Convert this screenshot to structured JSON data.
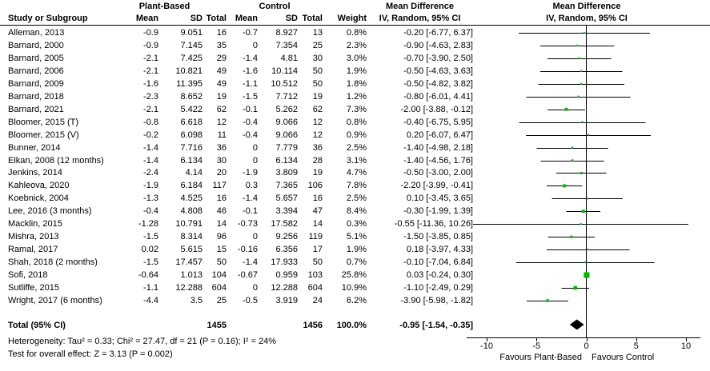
{
  "header": {
    "group1": "Plant-Based",
    "group2": "Control",
    "study": "Study or Subgroup",
    "mean": "Mean",
    "sd": "SD",
    "total": "Total",
    "weight": "Weight",
    "md_title": "Mean Difference",
    "md_sub": "IV, Random, 95% CI"
  },
  "chart_data": {
    "type": "forest",
    "effect_measure": "Mean Difference",
    "model": "IV, Random, 95% CI",
    "studies": [
      {
        "name": "Alleman, 2013",
        "pb_mean": "-0.9",
        "pb_sd": "9.051",
        "pb_n": "16",
        "c_mean": "-0.7",
        "c_sd": "8.927",
        "c_n": "13",
        "weight": "0.8%",
        "md": -0.2,
        "lo": -6.77,
        "hi": 6.37
      },
      {
        "name": "Barnard, 2000",
        "pb_mean": "-0.9",
        "pb_sd": "7.145",
        "pb_n": "35",
        "c_mean": "0",
        "c_sd": "7.354",
        "c_n": "25",
        "weight": "2.3%",
        "md": -0.9,
        "lo": -4.63,
        "hi": 2.83
      },
      {
        "name": "Barnard, 2005",
        "pb_mean": "-2.1",
        "pb_sd": "7.425",
        "pb_n": "29",
        "c_mean": "-1.4",
        "c_sd": "4.81",
        "c_n": "30",
        "weight": "3.0%",
        "md": -0.7,
        "lo": -3.9,
        "hi": 2.5
      },
      {
        "name": "Barnard, 2006",
        "pb_mean": "-2.1",
        "pb_sd": "10.821",
        "pb_n": "49",
        "c_mean": "-1.6",
        "c_sd": "10.114",
        "c_n": "50",
        "weight": "1.9%",
        "md": -0.5,
        "lo": -4.63,
        "hi": 3.63
      },
      {
        "name": "Barnard, 2009",
        "pb_mean": "-1.6",
        "pb_sd": "11.395",
        "pb_n": "49",
        "c_mean": "-1.1",
        "c_sd": "10.512",
        "c_n": "50",
        "weight": "1.8%",
        "md": -0.5,
        "lo": -4.82,
        "hi": 3.82
      },
      {
        "name": "Barnard, 2018",
        "pb_mean": "-2.3",
        "pb_sd": "8.652",
        "pb_n": "19",
        "c_mean": "-1.5",
        "c_sd": "7.712",
        "c_n": "19",
        "weight": "1.2%",
        "md": -0.8,
        "lo": -6.01,
        "hi": 4.41
      },
      {
        "name": "Barnard, 2021",
        "pb_mean": "-2.1",
        "pb_sd": "5.422",
        "pb_n": "62",
        "c_mean": "-0.1",
        "c_sd": "5.262",
        "c_n": "62",
        "weight": "7.3%",
        "md": -2.0,
        "lo": -3.88,
        "hi": -0.12
      },
      {
        "name": "Bloomer, 2015 (T)",
        "pb_mean": "-0.8",
        "pb_sd": "6.618",
        "pb_n": "12",
        "c_mean": "-0.4",
        "c_sd": "9.066",
        "c_n": "12",
        "weight": "0.8%",
        "md": -0.4,
        "lo": -6.75,
        "hi": 5.95
      },
      {
        "name": "Bloomer, 2015 (V)",
        "pb_mean": "-0.2",
        "pb_sd": "6.098",
        "pb_n": "11",
        "c_mean": "-0.4",
        "c_sd": "9.066",
        "c_n": "12",
        "weight": "0.9%",
        "md": 0.2,
        "lo": -6.07,
        "hi": 6.47
      },
      {
        "name": "Bunner, 2014",
        "pb_mean": "-1.4",
        "pb_sd": "7.716",
        "pb_n": "36",
        "c_mean": "0",
        "c_sd": "7.779",
        "c_n": "36",
        "weight": "2.5%",
        "md": -1.4,
        "lo": -4.98,
        "hi": 2.18
      },
      {
        "name": "Elkan, 2008 (12 months)",
        "pb_mean": "-1.4",
        "pb_sd": "6.134",
        "pb_n": "30",
        "c_mean": "0",
        "c_sd": "6.134",
        "c_n": "28",
        "weight": "3.1%",
        "md": -1.4,
        "lo": -4.56,
        "hi": 1.76
      },
      {
        "name": "Jenkins, 2014",
        "pb_mean": "-2.4",
        "pb_sd": "4.14",
        "pb_n": "20",
        "c_mean": "-1.9",
        "c_sd": "3.809",
        "c_n": "19",
        "weight": "4.7%",
        "md": -0.5,
        "lo": -3.0,
        "hi": 2.0
      },
      {
        "name": "Kahleova, 2020",
        "pb_mean": "-1.9",
        "pb_sd": "6.184",
        "pb_n": "117",
        "c_mean": "0.3",
        "c_sd": "7.365",
        "c_n": "106",
        "weight": "7.8%",
        "md": -2.2,
        "lo": -3.99,
        "hi": -0.41
      },
      {
        "name": "Koebnick, 2004",
        "pb_mean": "-1.3",
        "pb_sd": "4.525",
        "pb_n": "16",
        "c_mean": "-1.4",
        "c_sd": "5.657",
        "c_n": "16",
        "weight": "2.5%",
        "md": 0.1,
        "lo": -3.45,
        "hi": 3.65
      },
      {
        "name": "Lee, 2016 (3 months)",
        "pb_mean": "-0.4",
        "pb_sd": "4.808",
        "pb_n": "46",
        "c_mean": "-0.1",
        "c_sd": "3.394",
        "c_n": "47",
        "weight": "8.4%",
        "md": -0.3,
        "lo": -1.99,
        "hi": 1.39
      },
      {
        "name": "Macklin, 2015",
        "pb_mean": "-1.28",
        "pb_sd": "10.791",
        "pb_n": "14",
        "c_mean": "-0.73",
        "c_sd": "17.582",
        "c_n": "14",
        "weight": "0.3%",
        "md": -0.55,
        "lo": -11.36,
        "hi": 10.26
      },
      {
        "name": "Mishra, 2013",
        "pb_mean": "-1.5",
        "pb_sd": "8.314",
        "pb_n": "96",
        "c_mean": "0",
        "c_sd": "9.256",
        "c_n": "119",
        "weight": "5.1%",
        "md": -1.5,
        "lo": -3.85,
        "hi": 0.85
      },
      {
        "name": "Ramal, 2017",
        "pb_mean": "0.02",
        "pb_sd": "5.615",
        "pb_n": "15",
        "c_mean": "-0.16",
        "c_sd": "6.356",
        "c_n": "17",
        "weight": "1.9%",
        "md": 0.18,
        "lo": -3.97,
        "hi": 4.33
      },
      {
        "name": "Shah, 2018 (2 months)",
        "pb_mean": "-1.5",
        "pb_sd": "17.457",
        "pb_n": "50",
        "c_mean": "-1.4",
        "c_sd": "17.933",
        "c_n": "50",
        "weight": "0.7%",
        "md": -0.1,
        "lo": -7.04,
        "hi": 6.84
      },
      {
        "name": "Sofi, 2018",
        "pb_mean": "-0.64",
        "pb_sd": "1.013",
        "pb_n": "104",
        "c_mean": "-0.67",
        "c_sd": "0.959",
        "c_n": "103",
        "weight": "25.8%",
        "md": 0.03,
        "lo": -0.24,
        "hi": 0.3
      },
      {
        "name": "Sutliffe, 2015",
        "pb_mean": "-1.1",
        "pb_sd": "12.288",
        "pb_n": "604",
        "c_mean": "0",
        "c_sd": "12.288",
        "c_n": "604",
        "weight": "10.9%",
        "md": -1.1,
        "lo": -2.49,
        "hi": 0.29
      },
      {
        "name": "Wright, 2017 (6 months)",
        "pb_mean": "-4.4",
        "pb_sd": "3.5",
        "pb_n": "25",
        "c_mean": "-0.5",
        "c_sd": "3.919",
        "c_n": "24",
        "weight": "6.2%",
        "md": -3.9,
        "lo": -5.98,
        "hi": -1.82
      }
    ],
    "total": {
      "label": "Total (95% CI)",
      "pb_n": "1455",
      "c_n": "1456",
      "weight": "100.0%",
      "md": -0.95,
      "lo": -1.54,
      "hi": -0.35
    },
    "heterogeneity": "Heterogeneity: Tau² = 0.33; Chi² = 27.47, df = 21 (P = 0.16); I² = 24%",
    "overall_effect": "Test for overall effect: Z = 3.13 (P = 0.002)",
    "axis": {
      "ticks": [
        -10,
        -5,
        0,
        5,
        10
      ],
      "min": -12,
      "max": 11.5,
      "favours_left": "Favours Plant-Based",
      "favours_right": "Favours Control"
    },
    "colors": {
      "marker": "#00ba00",
      "line": "#000000",
      "diamond": "#000000"
    }
  }
}
